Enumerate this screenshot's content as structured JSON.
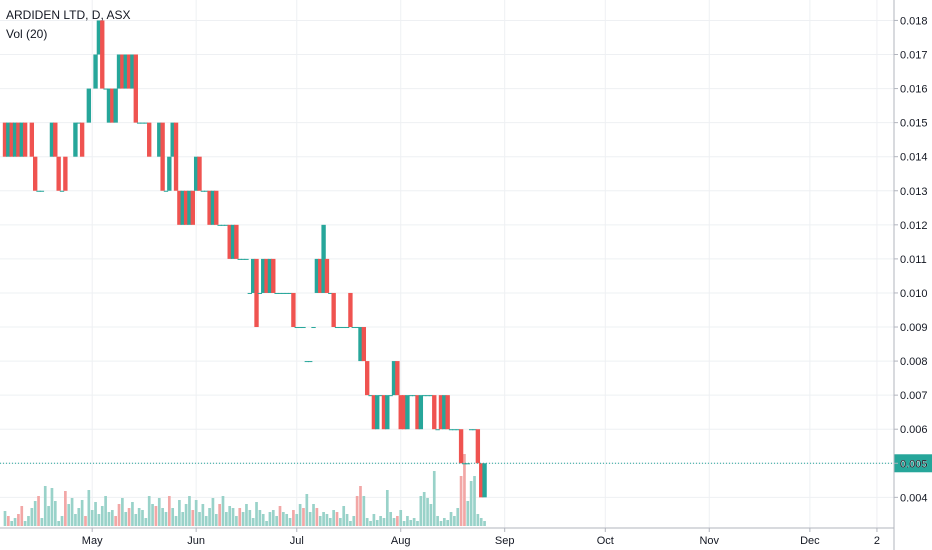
{
  "chart_data": {
    "type": "candlestick",
    "title": "ARDIDEN LTD, D, ASX",
    "indicator": "Vol (20)",
    "current_price_label": "0.005",
    "ylim": [
      0.0031,
      0.0186
    ],
    "y_ticks": [
      "0.004",
      "0.005",
      "0.006",
      "0.007",
      "0.008",
      "0.009",
      "0.010",
      "0.011",
      "0.012",
      "0.013",
      "0.014",
      "0.015",
      "0.016",
      "0.017",
      "0.018"
    ],
    "x_ticks": [
      {
        "label": "May",
        "day": 36
      },
      {
        "label": "Jun",
        "day": 67
      },
      {
        "label": "Jul",
        "day": 97
      },
      {
        "label": "Aug",
        "day": 128
      },
      {
        "label": "Sep",
        "day": 159
      },
      {
        "label": "Oct",
        "day": 189
      },
      {
        "label": "Nov",
        "day": 220
      },
      {
        "label": "Dec",
        "day": 250
      },
      {
        "label": "2",
        "day": 270
      }
    ],
    "x_range_days": [
      10,
      273
    ],
    "candles": [
      {
        "d": 10,
        "o": 0.015,
        "c": 0.014
      },
      {
        "d": 11,
        "o": 0.014,
        "c": 0.015
      },
      {
        "d": 12,
        "o": 0.015,
        "c": 0.014
      },
      {
        "d": 13,
        "o": 0.014,
        "c": 0.015
      },
      {
        "d": 14,
        "o": 0.015,
        "c": 0.014
      },
      {
        "d": 15,
        "o": 0.014,
        "c": 0.015
      },
      {
        "d": 16,
        "o": 0.015,
        "c": 0.014
      },
      {
        "d": 18,
        "o": 0.015,
        "c": 0.014
      },
      {
        "d": 19,
        "o": 0.014,
        "c": 0.013
      },
      {
        "d": 20,
        "o": 0.013,
        "c": 0.013
      },
      {
        "d": 21,
        "o": 0.013,
        "c": 0.013
      },
      {
        "d": 24,
        "o": 0.014,
        "c": 0.015
      },
      {
        "d": 25,
        "o": 0.015,
        "c": 0.014
      },
      {
        "d": 26,
        "o": 0.014,
        "c": 0.013
      },
      {
        "d": 27,
        "o": 0.013,
        "c": 0.013
      },
      {
        "d": 28,
        "o": 0.014,
        "c": 0.013
      },
      {
        "d": 31,
        "o": 0.014,
        "c": 0.015
      },
      {
        "d": 32,
        "o": 0.015,
        "c": 0.015
      },
      {
        "d": 33,
        "o": 0.015,
        "c": 0.014
      },
      {
        "d": 35,
        "o": 0.015,
        "c": 0.016
      },
      {
        "d": 37,
        "o": 0.016,
        "c": 0.017
      },
      {
        "d": 38,
        "o": 0.017,
        "c": 0.018
      },
      {
        "d": 39,
        "o": 0.018,
        "c": 0.016
      },
      {
        "d": 40,
        "o": 0.016,
        "c": 0.016
      },
      {
        "d": 41,
        "o": 0.015,
        "c": 0.016
      },
      {
        "d": 42,
        "o": 0.016,
        "c": 0.015
      },
      {
        "d": 43,
        "o": 0.015,
        "c": 0.016
      },
      {
        "d": 44,
        "o": 0.016,
        "c": 0.017
      },
      {
        "d": 45,
        "o": 0.017,
        "c": 0.016
      },
      {
        "d": 46,
        "o": 0.016,
        "c": 0.017
      },
      {
        "d": 47,
        "o": 0.017,
        "c": 0.016
      },
      {
        "d": 48,
        "o": 0.016,
        "c": 0.017
      },
      {
        "d": 49,
        "o": 0.017,
        "c": 0.015
      },
      {
        "d": 50,
        "o": 0.015,
        "c": 0.015
      },
      {
        "d": 51,
        "o": 0.015,
        "c": 0.015
      },
      {
        "d": 52,
        "o": 0.015,
        "c": 0.015
      },
      {
        "d": 53,
        "o": 0.015,
        "c": 0.014
      },
      {
        "d": 56,
        "o": 0.014,
        "c": 0.015
      },
      {
        "d": 57,
        "o": 0.015,
        "c": 0.013
      },
      {
        "d": 58,
        "o": 0.013,
        "c": 0.013
      },
      {
        "d": 59,
        "o": 0.013,
        "c": 0.014
      },
      {
        "d": 60,
        "o": 0.014,
        "c": 0.015
      },
      {
        "d": 61,
        "o": 0.015,
        "c": 0.013
      },
      {
        "d": 62,
        "o": 0.013,
        "c": 0.012
      },
      {
        "d": 63,
        "o": 0.012,
        "c": 0.013
      },
      {
        "d": 64,
        "o": 0.013,
        "c": 0.012
      },
      {
        "d": 65,
        "o": 0.012,
        "c": 0.013
      },
      {
        "d": 66,
        "o": 0.013,
        "c": 0.012
      },
      {
        "d": 67,
        "o": 0.013,
        "c": 0.014
      },
      {
        "d": 68,
        "o": 0.014,
        "c": 0.013
      },
      {
        "d": 69,
        "o": 0.013,
        "c": 0.013
      },
      {
        "d": 70,
        "o": 0.013,
        "c": 0.013
      },
      {
        "d": 71,
        "o": 0.013,
        "c": 0.012
      },
      {
        "d": 72,
        "o": 0.012,
        "c": 0.013
      },
      {
        "d": 73,
        "o": 0.013,
        "c": 0.012
      },
      {
        "d": 74,
        "o": 0.012,
        "c": 0.012
      },
      {
        "d": 75,
        "o": 0.012,
        "c": 0.012
      },
      {
        "d": 76,
        "o": 0.012,
        "c": 0.012
      },
      {
        "d": 77,
        "o": 0.012,
        "c": 0.011
      },
      {
        "d": 78,
        "o": 0.011,
        "c": 0.012
      },
      {
        "d": 79,
        "o": 0.012,
        "c": 0.011
      },
      {
        "d": 80,
        "o": 0.011,
        "c": 0.011
      },
      {
        "d": 81,
        "o": 0.011,
        "c": 0.011
      },
      {
        "d": 82,
        "o": 0.011,
        "c": 0.011
      },
      {
        "d": 83,
        "o": 0.01,
        "c": 0.01
      },
      {
        "d": 84,
        "o": 0.01,
        "c": 0.011
      },
      {
        "d": 85,
        "o": 0.011,
        "c": 0.009
      },
      {
        "d": 86,
        "o": 0.01,
        "c": 0.01
      },
      {
        "d": 87,
        "o": 0.01,
        "c": 0.011
      },
      {
        "d": 88,
        "o": 0.011,
        "c": 0.01
      },
      {
        "d": 89,
        "o": 0.01,
        "c": 0.011
      },
      {
        "d": 90,
        "o": 0.011,
        "c": 0.01
      },
      {
        "d": 91,
        "o": 0.01,
        "c": 0.01
      },
      {
        "d": 92,
        "o": 0.01,
        "c": 0.01
      },
      {
        "d": 93,
        "o": 0.01,
        "c": 0.01
      },
      {
        "d": 94,
        "o": 0.01,
        "c": 0.01
      },
      {
        "d": 95,
        "o": 0.01,
        "c": 0.01
      },
      {
        "d": 96,
        "o": 0.01,
        "c": 0.009
      },
      {
        "d": 97,
        "o": 0.009,
        "c": 0.009
      },
      {
        "d": 98,
        "o": 0.009,
        "c": 0.009
      },
      {
        "d": 99,
        "o": 0.009,
        "c": 0.009
      },
      {
        "d": 100,
        "o": 0.008,
        "c": 0.008
      },
      {
        "d": 101,
        "o": 0.008,
        "c": 0.008
      },
      {
        "d": 102,
        "o": 0.009,
        "c": 0.009
      },
      {
        "d": 103,
        "o": 0.01,
        "c": 0.011
      },
      {
        "d": 104,
        "o": 0.011,
        "c": 0.01
      },
      {
        "d": 105,
        "o": 0.01,
        "c": 0.012
      },
      {
        "d": 106,
        "o": 0.011,
        "c": 0.01
      },
      {
        "d": 107,
        "o": 0.01,
        "c": 0.01
      },
      {
        "d": 108,
        "o": 0.01,
        "c": 0.009
      },
      {
        "d": 109,
        "o": 0.009,
        "c": 0.009
      },
      {
        "d": 110,
        "o": 0.009,
        "c": 0.009
      },
      {
        "d": 111,
        "o": 0.009,
        "c": 0.009
      },
      {
        "d": 112,
        "o": 0.009,
        "c": 0.009
      },
      {
        "d": 113,
        "o": 0.01,
        "c": 0.009
      },
      {
        "d": 114,
        "o": 0.009,
        "c": 0.009
      },
      {
        "d": 115,
        "o": 0.009,
        "c": 0.009
      },
      {
        "d": 116,
        "o": 0.008,
        "c": 0.009
      },
      {
        "d": 117,
        "o": 0.009,
        "c": 0.008
      },
      {
        "d": 118,
        "o": 0.008,
        "c": 0.007
      },
      {
        "d": 119,
        "o": 0.007,
        "c": 0.007
      },
      {
        "d": 120,
        "o": 0.007,
        "c": 0.006
      },
      {
        "d": 121,
        "o": 0.006,
        "c": 0.007
      },
      {
        "d": 122,
        "o": 0.007,
        "c": 0.007
      },
      {
        "d": 123,
        "o": 0.007,
        "c": 0.006
      },
      {
        "d": 124,
        "o": 0.006,
        "c": 0.007
      },
      {
        "d": 125,
        "o": 0.007,
        "c": 0.007
      },
      {
        "d": 126,
        "o": 0.007,
        "c": 0.008
      },
      {
        "d": 127,
        "o": 0.008,
        "c": 0.007
      },
      {
        "d": 128,
        "o": 0.007,
        "c": 0.006
      },
      {
        "d": 129,
        "o": 0.007,
        "c": 0.006
      },
      {
        "d": 130,
        "o": 0.006,
        "c": 0.007
      },
      {
        "d": 131,
        "o": 0.007,
        "c": 0.007
      },
      {
        "d": 132,
        "o": 0.007,
        "c": 0.007
      },
      {
        "d": 133,
        "o": 0.007,
        "c": 0.006
      },
      {
        "d": 134,
        "o": 0.006,
        "c": 0.007
      },
      {
        "d": 135,
        "o": 0.007,
        "c": 0.007
      },
      {
        "d": 136,
        "o": 0.007,
        "c": 0.007
      },
      {
        "d": 137,
        "o": 0.007,
        "c": 0.007
      },
      {
        "d": 138,
        "o": 0.007,
        "c": 0.006
      },
      {
        "d": 139,
        "o": 0.006,
        "c": 0.006
      },
      {
        "d": 140,
        "o": 0.007,
        "c": 0.006
      },
      {
        "d": 141,
        "o": 0.006,
        "c": 0.007
      },
      {
        "d": 142,
        "o": 0.007,
        "c": 0.006
      },
      {
        "d": 143,
        "o": 0.006,
        "c": 0.006
      },
      {
        "d": 144,
        "o": 0.006,
        "c": 0.006
      },
      {
        "d": 145,
        "o": 0.006,
        "c": 0.006
      },
      {
        "d": 146,
        "o": 0.006,
        "c": 0.005
      },
      {
        "d": 147,
        "o": 0.005,
        "c": 0.005
      },
      {
        "d": 148,
        "o": 0.005,
        "c": 0.005
      },
      {
        "d": 149,
        "o": 0.006,
        "c": 0.006
      },
      {
        "d": 150,
        "o": 0.006,
        "c": 0.006
      },
      {
        "d": 151,
        "o": 0.006,
        "c": 0.005
      },
      {
        "d": 152,
        "o": 0.005,
        "c": 0.004
      },
      {
        "d": 153,
        "o": 0.004,
        "c": 0.005
      }
    ],
    "volumes": [
      [
        10,
        0.15,
        "g"
      ],
      [
        11,
        0.1,
        "r"
      ],
      [
        12,
        0.05,
        "g"
      ],
      [
        13,
        0.08,
        "g"
      ],
      [
        14,
        0.12,
        "r"
      ],
      [
        15,
        0.2,
        "r"
      ],
      [
        16,
        0.05,
        "g"
      ],
      [
        17,
        0.1,
        "g"
      ],
      [
        18,
        0.18,
        "g"
      ],
      [
        19,
        0.25,
        "g"
      ],
      [
        20,
        0.3,
        "r"
      ],
      [
        21,
        0.08,
        "g"
      ],
      [
        22,
        0.4,
        "g"
      ],
      [
        23,
        0.2,
        "g"
      ],
      [
        24,
        0.38,
        "g"
      ],
      [
        25,
        0.25,
        "g"
      ],
      [
        26,
        0.05,
        "g"
      ],
      [
        27,
        0.1,
        "g"
      ],
      [
        28,
        0.35,
        "r"
      ],
      [
        29,
        0.22,
        "g"
      ],
      [
        30,
        0.28,
        "g"
      ],
      [
        31,
        0.12,
        "g"
      ],
      [
        32,
        0.18,
        "g"
      ],
      [
        33,
        0.26,
        "g"
      ],
      [
        34,
        0.1,
        "r"
      ],
      [
        35,
        0.36,
        "g"
      ],
      [
        36,
        0.16,
        "g"
      ],
      [
        37,
        0.24,
        "g"
      ],
      [
        38,
        0.12,
        "g"
      ],
      [
        39,
        0.2,
        "g"
      ],
      [
        40,
        0.3,
        "g"
      ],
      [
        41,
        0.14,
        "g"
      ],
      [
        42,
        0.16,
        "g"
      ],
      [
        43,
        0.1,
        "r"
      ],
      [
        44,
        0.22,
        "r"
      ],
      [
        45,
        0.28,
        "g"
      ],
      [
        46,
        0.14,
        "g"
      ],
      [
        47,
        0.18,
        "r"
      ],
      [
        48,
        0.24,
        "g"
      ],
      [
        49,
        0.12,
        "g"
      ],
      [
        50,
        0.18,
        "g"
      ],
      [
        51,
        0.16,
        "g"
      ],
      [
        52,
        0.08,
        "g"
      ],
      [
        53,
        0.3,
        "g"
      ],
      [
        54,
        0.22,
        "g"
      ],
      [
        55,
        0.2,
        "r"
      ],
      [
        56,
        0.28,
        "g"
      ],
      [
        57,
        0.18,
        "g"
      ],
      [
        58,
        0.14,
        "g"
      ],
      [
        59,
        0.3,
        "r"
      ],
      [
        60,
        0.18,
        "g"
      ],
      [
        61,
        0.1,
        "g"
      ],
      [
        62,
        0.26,
        "g"
      ],
      [
        63,
        0.14,
        "g"
      ],
      [
        64,
        0.22,
        "g"
      ],
      [
        65,
        0.3,
        "g"
      ],
      [
        66,
        0.16,
        "r"
      ],
      [
        67,
        0.26,
        "g"
      ],
      [
        68,
        0.14,
        "g"
      ],
      [
        69,
        0.22,
        "g"
      ],
      [
        70,
        0.1,
        "g"
      ],
      [
        71,
        0.18,
        "g"
      ],
      [
        72,
        0.28,
        "g"
      ],
      [
        73,
        0.12,
        "g"
      ],
      [
        74,
        0.22,
        "r"
      ],
      [
        75,
        0.3,
        "g"
      ],
      [
        76,
        0.14,
        "g"
      ],
      [
        77,
        0.2,
        "g"
      ],
      [
        78,
        0.18,
        "g"
      ],
      [
        79,
        0.1,
        "g"
      ],
      [
        80,
        0.18,
        "r"
      ],
      [
        81,
        0.14,
        "g"
      ],
      [
        82,
        0.22,
        "g"
      ],
      [
        83,
        0.16,
        "g"
      ],
      [
        84,
        0.08,
        "g"
      ],
      [
        85,
        0.24,
        "g"
      ],
      [
        86,
        0.16,
        "g"
      ],
      [
        87,
        0.12,
        "g"
      ],
      [
        88,
        0.05,
        "g"
      ],
      [
        89,
        0.14,
        "g"
      ],
      [
        90,
        0.16,
        "g"
      ],
      [
        91,
        0.1,
        "g"
      ],
      [
        92,
        0.2,
        "r"
      ],
      [
        93,
        0.14,
        "g"
      ],
      [
        94,
        0.12,
        "g"
      ],
      [
        95,
        0.08,
        "g"
      ],
      [
        96,
        0.16,
        "r"
      ],
      [
        97,
        0.12,
        "g"
      ],
      [
        98,
        0.22,
        "g"
      ],
      [
        99,
        0.18,
        "r"
      ],
      [
        100,
        0.32,
        "g"
      ],
      [
        101,
        0.14,
        "g"
      ],
      [
        102,
        0.22,
        "g"
      ],
      [
        103,
        0.18,
        "r"
      ],
      [
        104,
        0.1,
        "g"
      ],
      [
        105,
        0.14,
        "g"
      ],
      [
        106,
        0.12,
        "g"
      ],
      [
        107,
        0.08,
        "g"
      ],
      [
        108,
        0.16,
        "g"
      ],
      [
        109,
        0.14,
        "r"
      ],
      [
        110,
        0.08,
        "g"
      ],
      [
        111,
        0.2,
        "g"
      ],
      [
        112,
        0.12,
        "g"
      ],
      [
        113,
        0.05,
        "g"
      ],
      [
        114,
        0.1,
        "g"
      ],
      [
        115,
        0.3,
        "r"
      ],
      [
        116,
        0.4,
        "r"
      ],
      [
        117,
        0.3,
        "g"
      ],
      [
        118,
        0.08,
        "g"
      ],
      [
        119,
        0.05,
        "g"
      ],
      [
        120,
        0.12,
        "g"
      ],
      [
        121,
        0.06,
        "g"
      ],
      [
        122,
        0.1,
        "g"
      ],
      [
        123,
        0.08,
        "g"
      ],
      [
        124,
        0.36,
        "g"
      ],
      [
        125,
        0.14,
        "g"
      ],
      [
        126,
        0.08,
        "g"
      ],
      [
        127,
        0.1,
        "r"
      ],
      [
        128,
        0.16,
        "g"
      ],
      [
        129,
        0.05,
        "g"
      ],
      [
        130,
        0.1,
        "g"
      ],
      [
        131,
        0.06,
        "g"
      ],
      [
        132,
        0.08,
        "g"
      ],
      [
        133,
        0.05,
        "g"
      ],
      [
        134,
        0.3,
        "g"
      ],
      [
        135,
        0.34,
        "g"
      ],
      [
        136,
        0.28,
        "g"
      ],
      [
        137,
        0.22,
        "g"
      ],
      [
        138,
        0.55,
        "g"
      ],
      [
        139,
        0.1,
        "g"
      ],
      [
        140,
        0.05,
        "g"
      ],
      [
        141,
        0.08,
        "g"
      ],
      [
        142,
        0.06,
        "g"
      ],
      [
        143,
        0.14,
        "g"
      ],
      [
        144,
        0.1,
        "g"
      ],
      [
        145,
        0.18,
        "g"
      ],
      [
        146,
        0.5,
        "r"
      ],
      [
        147,
        0.72,
        "r"
      ],
      [
        148,
        0.25,
        "g"
      ],
      [
        149,
        0.45,
        "g"
      ],
      [
        150,
        0.5,
        "g"
      ],
      [
        151,
        0.12,
        "g"
      ],
      [
        152,
        0.08,
        "g"
      ],
      [
        153,
        0.05,
        "g"
      ]
    ],
    "colors": {
      "up": "#26a69a",
      "down": "#ef5350",
      "volume_up": "#99d2c9",
      "volume_down": "#f2a7a6",
      "grid": "#eef0f3",
      "axis_text": "#131722",
      "price_line": "#26a69a",
      "price_label_bg": "#26a69a"
    }
  }
}
